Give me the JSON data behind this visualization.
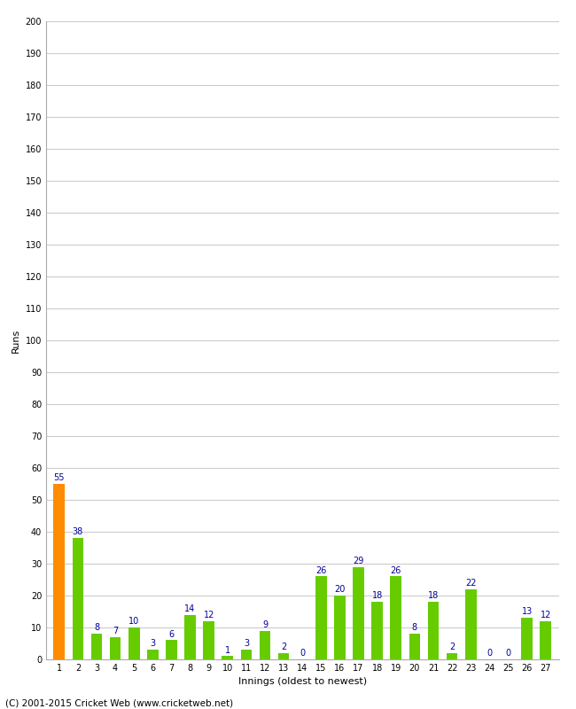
{
  "innings": [
    1,
    2,
    3,
    4,
    5,
    6,
    7,
    8,
    9,
    10,
    11,
    12,
    13,
    14,
    15,
    16,
    17,
    18,
    19,
    20,
    21,
    22,
    23,
    24,
    25,
    26,
    27
  ],
  "values": [
    55,
    38,
    8,
    7,
    10,
    3,
    6,
    14,
    12,
    1,
    3,
    9,
    2,
    0,
    26,
    20,
    29,
    18,
    26,
    8,
    18,
    2,
    22,
    0,
    0,
    13,
    12
  ],
  "bar_colors": [
    "#ff8c00",
    "#66cc00",
    "#66cc00",
    "#66cc00",
    "#66cc00",
    "#66cc00",
    "#66cc00",
    "#66cc00",
    "#66cc00",
    "#66cc00",
    "#66cc00",
    "#66cc00",
    "#66cc00",
    "#66cc00",
    "#66cc00",
    "#66cc00",
    "#66cc00",
    "#66cc00",
    "#66cc00",
    "#66cc00",
    "#66cc00",
    "#66cc00",
    "#66cc00",
    "#66cc00",
    "#66cc00",
    "#66cc00",
    "#66cc00"
  ],
  "xlabel": "Innings (oldest to newest)",
  "ylabel": "Runs",
  "ylim": [
    0,
    200
  ],
  "yticks": [
    0,
    10,
    20,
    30,
    40,
    50,
    60,
    70,
    80,
    90,
    100,
    110,
    120,
    130,
    140,
    150,
    160,
    170,
    180,
    190,
    200
  ],
  "label_color": "#000099",
  "label_fontsize": 7,
  "axis_fontsize": 7,
  "xlabel_fontsize": 8,
  "ylabel_fontsize": 8,
  "footer": "(C) 2001-2015 Cricket Web (www.cricketweb.net)",
  "footer_fontsize": 7.5,
  "bg_color": "#ffffff",
  "grid_color": "#cccccc",
  "bar_width": 0.6
}
